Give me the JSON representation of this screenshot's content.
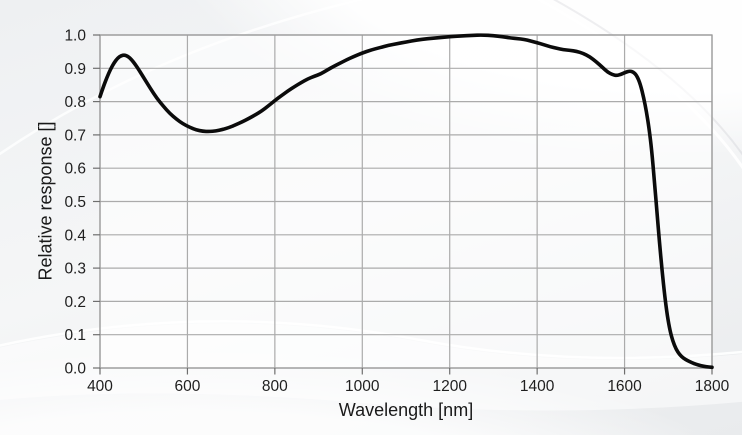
{
  "chart_data": {
    "type": "line",
    "title": "",
    "xlabel": "Wavelength [nm]",
    "ylabel": "Relative response []",
    "x_range": [
      400,
      1800
    ],
    "y_range": [
      0.0,
      1.0
    ],
    "x_ticks": [
      "400",
      "600",
      "800",
      "1000",
      "1200",
      "1400",
      "1600",
      "1800"
    ],
    "y_ticks": [
      "0.0",
      "0.1",
      "0.2",
      "0.3",
      "0.4",
      "0.5",
      "0.6",
      "0.7",
      "0.8",
      "0.9",
      "1.0"
    ],
    "grid": true,
    "legend": "none",
    "colors": {
      "line": "#0b0b0b",
      "grid": "#ababab",
      "border": "#9a9a9a",
      "tick": "#6e6e6e",
      "text": "#1f1f1f",
      "plot_bg": "rgba(255,255,255,0.6)",
      "page_bg": "#f0f1f3"
    },
    "series": [
      {
        "name": "relative response",
        "points": [
          [
            400,
            0.815
          ],
          [
            408,
            0.846
          ],
          [
            416,
            0.873
          ],
          [
            424,
            0.897
          ],
          [
            432,
            0.916
          ],
          [
            440,
            0.93
          ],
          [
            448,
            0.938
          ],
          [
            456,
            0.94
          ],
          [
            464,
            0.936
          ],
          [
            472,
            0.926
          ],
          [
            480,
            0.913
          ],
          [
            490,
            0.893
          ],
          [
            500,
            0.872
          ],
          [
            515,
            0.84
          ],
          [
            530,
            0.81
          ],
          [
            545,
            0.786
          ],
          [
            560,
            0.764
          ],
          [
            575,
            0.747
          ],
          [
            590,
            0.733
          ],
          [
            605,
            0.723
          ],
          [
            620,
            0.715
          ],
          [
            635,
            0.711
          ],
          [
            650,
            0.71
          ],
          [
            665,
            0.712
          ],
          [
            680,
            0.716
          ],
          [
            695,
            0.722
          ],
          [
            710,
            0.73
          ],
          [
            725,
            0.739
          ],
          [
            740,
            0.749
          ],
          [
            755,
            0.76
          ],
          [
            770,
            0.772
          ],
          [
            785,
            0.787
          ],
          [
            800,
            0.803
          ],
          [
            815,
            0.818
          ],
          [
            830,
            0.832
          ],
          [
            845,
            0.845
          ],
          [
            860,
            0.857
          ],
          [
            875,
            0.868
          ],
          [
            890,
            0.876
          ],
          [
            905,
            0.883
          ],
          [
            920,
            0.895
          ],
          [
            935,
            0.906
          ],
          [
            950,
            0.916
          ],
          [
            965,
            0.926
          ],
          [
            980,
            0.935
          ],
          [
            1000,
            0.946
          ],
          [
            1020,
            0.955
          ],
          [
            1040,
            0.962
          ],
          [
            1060,
            0.969
          ],
          [
            1080,
            0.974
          ],
          [
            1100,
            0.979
          ],
          [
            1125,
            0.985
          ],
          [
            1150,
            0.989
          ],
          [
            1175,
            0.992
          ],
          [
            1200,
            0.995
          ],
          [
            1225,
            0.997
          ],
          [
            1250,
            0.999
          ],
          [
            1275,
            1.0
          ],
          [
            1300,
            0.998
          ],
          [
            1320,
            0.995
          ],
          [
            1340,
            0.991
          ],
          [
            1355,
            0.989
          ],
          [
            1370,
            0.987
          ],
          [
            1385,
            0.982
          ],
          [
            1400,
            0.977
          ],
          [
            1415,
            0.971
          ],
          [
            1430,
            0.965
          ],
          [
            1445,
            0.96
          ],
          [
            1460,
            0.956
          ],
          [
            1475,
            0.954
          ],
          [
            1490,
            0.951
          ],
          [
            1505,
            0.945
          ],
          [
            1520,
            0.935
          ],
          [
            1535,
            0.92
          ],
          [
            1550,
            0.902
          ],
          [
            1562,
            0.888
          ],
          [
            1572,
            0.881
          ],
          [
            1582,
            0.878
          ],
          [
            1592,
            0.882
          ],
          [
            1602,
            0.888
          ],
          [
            1612,
            0.892
          ],
          [
            1620,
            0.889
          ],
          [
            1628,
            0.878
          ],
          [
            1636,
            0.853
          ],
          [
            1644,
            0.81
          ],
          [
            1650,
            0.77
          ],
          [
            1656,
            0.72
          ],
          [
            1662,
            0.655
          ],
          [
            1668,
            0.565
          ],
          [
            1674,
            0.47
          ],
          [
            1680,
            0.375
          ],
          [
            1686,
            0.29
          ],
          [
            1692,
            0.215
          ],
          [
            1698,
            0.155
          ],
          [
            1704,
            0.112
          ],
          [
            1710,
            0.082
          ],
          [
            1718,
            0.056
          ],
          [
            1726,
            0.04
          ],
          [
            1734,
            0.03
          ],
          [
            1744,
            0.022
          ],
          [
            1754,
            0.016
          ],
          [
            1764,
            0.011
          ],
          [
            1774,
            0.007
          ],
          [
            1786,
            0.004
          ],
          [
            1800,
            0.002
          ]
        ]
      }
    ]
  }
}
